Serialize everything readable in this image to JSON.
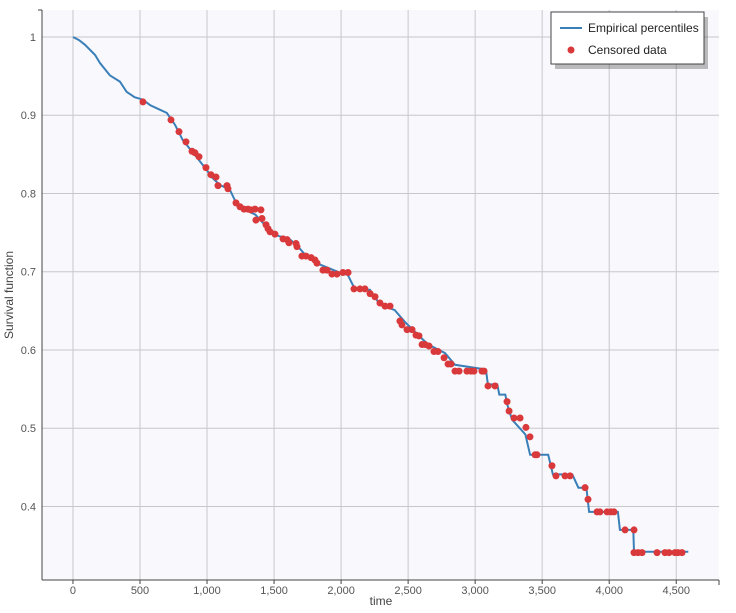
{
  "chart_data": {
    "type": "line",
    "title": "",
    "xlabel": "time",
    "ylabel": "Survival function",
    "xlim": [
      -231,
      4819
    ],
    "ylim": [
      0.306,
      1.0345
    ],
    "xticks": [
      0,
      500,
      1000,
      1500,
      2000,
      2500,
      3000,
      3500,
      4000,
      4500
    ],
    "xtick_labels": [
      "0",
      "500",
      "1,000",
      "1,500",
      "2,000",
      "2,500",
      "3,000",
      "3,500",
      "4,000",
      "4,500"
    ],
    "yticks": [
      0.4,
      0.5,
      0.6,
      0.7,
      0.8,
      0.9,
      1
    ],
    "ytick_labels": [
      "0.4",
      "0.5",
      "0.6",
      "0.7",
      "0.8",
      "0.9",
      "1"
    ],
    "grid": true,
    "legend_position": "top-right",
    "colors": {
      "curve": "#3a7fb8",
      "censored": "#d9393b",
      "background": "#f9f9fd"
    },
    "series": [
      {
        "name": "Empirical percentiles",
        "kind": "line",
        "points": [
          [
            0,
            1.0
          ],
          [
            45,
            0.996
          ],
          [
            90,
            0.99
          ],
          [
            165,
            0.977
          ],
          [
            200,
            0.967
          ],
          [
            275,
            0.951
          ],
          [
            350,
            0.943
          ],
          [
            400,
            0.93
          ],
          [
            460,
            0.923
          ],
          [
            520,
            0.92
          ],
          [
            575,
            0.913
          ],
          [
            650,
            0.907
          ],
          [
            700,
            0.903
          ],
          [
            760,
            0.888
          ],
          [
            820,
            0.868
          ],
          [
            910,
            0.849
          ],
          [
            985,
            0.833
          ],
          [
            1040,
            0.82
          ],
          [
            1095,
            0.811
          ],
          [
            1170,
            0.805
          ],
          [
            1225,
            0.785
          ],
          [
            1285,
            0.779
          ],
          [
            1360,
            0.773
          ],
          [
            1430,
            0.76
          ],
          [
            1510,
            0.747
          ],
          [
            1620,
            0.741
          ],
          [
            1670,
            0.734
          ],
          [
            1730,
            0.722
          ],
          [
            1845,
            0.709
          ],
          [
            1990,
            0.699
          ],
          [
            2050,
            0.696
          ],
          [
            2105,
            0.677
          ],
          [
            2215,
            0.677
          ],
          [
            2290,
            0.658
          ],
          [
            2400,
            0.651
          ],
          [
            2475,
            0.636
          ],
          [
            2575,
            0.619
          ],
          [
            2650,
            0.607
          ],
          [
            2775,
            0.596
          ],
          [
            2850,
            0.581
          ],
          [
            3080,
            0.575
          ],
          [
            3095,
            0.556
          ],
          [
            3165,
            0.556
          ],
          [
            3180,
            0.543
          ],
          [
            3225,
            0.543
          ],
          [
            3240,
            0.53
          ],
          [
            3275,
            0.511
          ],
          [
            3375,
            0.492
          ],
          [
            3410,
            0.466
          ],
          [
            3545,
            0.466
          ],
          [
            3580,
            0.441
          ],
          [
            3725,
            0.441
          ],
          [
            3770,
            0.424
          ],
          [
            3830,
            0.424
          ],
          [
            3850,
            0.393
          ],
          [
            4065,
            0.393
          ],
          [
            4080,
            0.37
          ],
          [
            4180,
            0.37
          ],
          [
            4185,
            0.342
          ],
          [
            4590,
            0.342
          ]
        ]
      },
      {
        "name": "Censored data",
        "kind": "scatter",
        "points": [
          [
            522,
            0.917
          ],
          [
            731,
            0.894
          ],
          [
            791,
            0.879
          ],
          [
            843,
            0.866
          ],
          [
            888,
            0.854
          ],
          [
            910,
            0.852
          ],
          [
            940,
            0.847
          ],
          [
            992,
            0.833
          ],
          [
            1029,
            0.824
          ],
          [
            1067,
            0.821
          ],
          [
            1082,
            0.81
          ],
          [
            1149,
            0.81
          ],
          [
            1156,
            0.806
          ],
          [
            1216,
            0.788
          ],
          [
            1246,
            0.783
          ],
          [
            1276,
            0.78
          ],
          [
            1306,
            0.78
          ],
          [
            1328,
            0.779
          ],
          [
            1358,
            0.78
          ],
          [
            1402,
            0.779
          ],
          [
            1365,
            0.766
          ],
          [
            1410,
            0.768
          ],
          [
            1440,
            0.76
          ],
          [
            1455,
            0.755
          ],
          [
            1470,
            0.751
          ],
          [
            1507,
            0.748
          ],
          [
            1567,
            0.742
          ],
          [
            1597,
            0.741
          ],
          [
            1611,
            0.737
          ],
          [
            1664,
            0.736
          ],
          [
            1671,
            0.732
          ],
          [
            1708,
            0.72
          ],
          [
            1738,
            0.72
          ],
          [
            1776,
            0.718
          ],
          [
            1805,
            0.715
          ],
          [
            1820,
            0.711
          ],
          [
            1865,
            0.702
          ],
          [
            1895,
            0.702
          ],
          [
            1932,
            0.697
          ],
          [
            1969,
            0.697
          ],
          [
            2014,
            0.699
          ],
          [
            2052,
            0.699
          ],
          [
            2096,
            0.678
          ],
          [
            2141,
            0.678
          ],
          [
            2178,
            0.678
          ],
          [
            2216,
            0.672
          ],
          [
            2253,
            0.668
          ],
          [
            2290,
            0.66
          ],
          [
            2328,
            0.656
          ],
          [
            2365,
            0.656
          ],
          [
            2439,
            0.637
          ],
          [
            2454,
            0.632
          ],
          [
            2492,
            0.626
          ],
          [
            2529,
            0.626
          ],
          [
            2559,
            0.619
          ],
          [
            2581,
            0.618
          ],
          [
            2604,
            0.607
          ],
          [
            2626,
            0.607
          ],
          [
            2656,
            0.605
          ],
          [
            2693,
            0.598
          ],
          [
            2723,
            0.598
          ],
          [
            2768,
            0.59
          ],
          [
            2798,
            0.582
          ],
          [
            2820,
            0.582
          ],
          [
            2850,
            0.573
          ],
          [
            2880,
            0.573
          ],
          [
            2939,
            0.573
          ],
          [
            2969,
            0.573
          ],
          [
            2991,
            0.573
          ],
          [
            3051,
            0.573
          ],
          [
            3066,
            0.573
          ],
          [
            3096,
            0.554
          ],
          [
            3148,
            0.554
          ],
          [
            3238,
            0.534
          ],
          [
            3253,
            0.522
          ],
          [
            3290,
            0.513
          ],
          [
            3335,
            0.513
          ],
          [
            3379,
            0.501
          ],
          [
            3409,
            0.489
          ],
          [
            3447,
            0.466
          ],
          [
            3461,
            0.466
          ],
          [
            3573,
            0.452
          ],
          [
            3603,
            0.439
          ],
          [
            3670,
            0.439
          ],
          [
            3708,
            0.439
          ],
          [
            3820,
            0.424
          ],
          [
            3842,
            0.409
          ],
          [
            3909,
            0.393
          ],
          [
            3931,
            0.393
          ],
          [
            3984,
            0.393
          ],
          [
            4013,
            0.393
          ],
          [
            4036,
            0.393
          ],
          [
            4118,
            0.37
          ],
          [
            4185,
            0.37
          ],
          [
            4185,
            0.341
          ],
          [
            4215,
            0.341
          ],
          [
            4245,
            0.341
          ],
          [
            4357,
            0.341
          ],
          [
            4416,
            0.341
          ],
          [
            4446,
            0.341
          ],
          [
            4491,
            0.341
          ],
          [
            4513,
            0.341
          ],
          [
            4543,
            0.341
          ]
        ]
      }
    ]
  }
}
